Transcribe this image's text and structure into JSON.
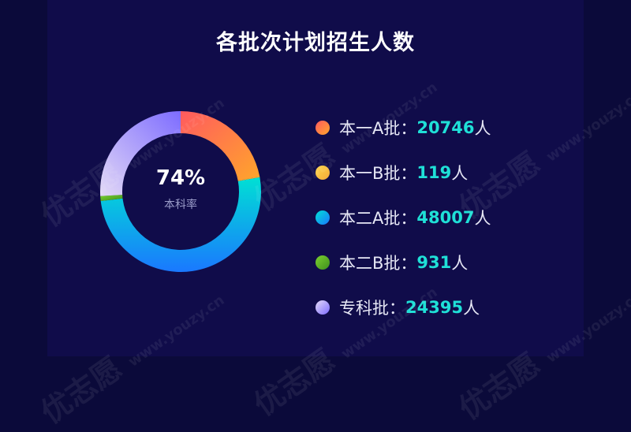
{
  "chart_data": {
    "type": "pie",
    "title": "各批次计划招生人数",
    "center_value": "74%",
    "center_label": "本科率",
    "unit": "人",
    "series": [
      {
        "name": "本一A批：",
        "value": 20746,
        "color": "#ff8a3d"
      },
      {
        "name": "本一B批：",
        "value": 119,
        "color": "#f7c23c"
      },
      {
        "name": "本二A批：",
        "value": 48007,
        "color": "#1aa8f0"
      },
      {
        "name": "本二B批：",
        "value": 931,
        "color": "#5fb52d"
      },
      {
        "name": "专科批：",
        "value": 24395,
        "color": "#b7a6f5"
      }
    ]
  },
  "watermark": {
    "brand": "优志愿",
    "site": "www.youzy.cn"
  }
}
